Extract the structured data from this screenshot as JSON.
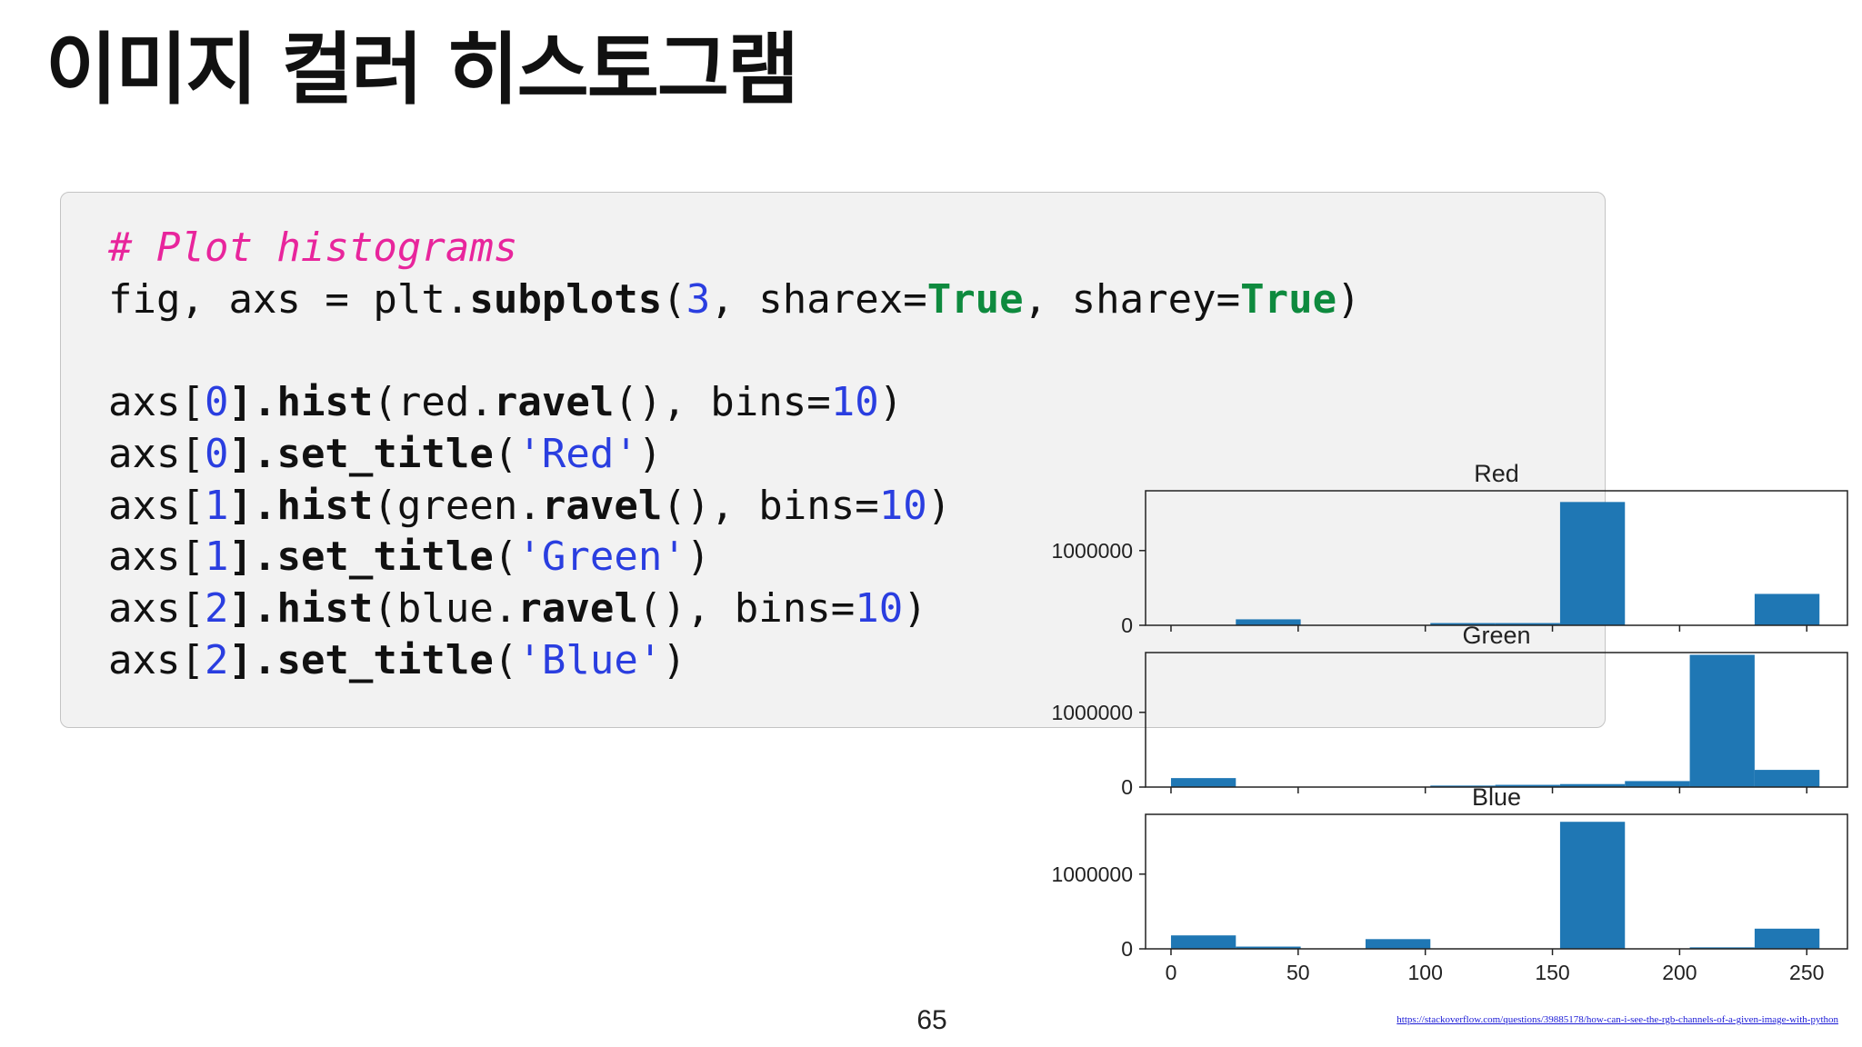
{
  "slide": {
    "title": "이미지 컬러 히스토그램",
    "page_number": "65",
    "source_url": "https://stackoverflow.com/questions/39885178/how-can-i-see-the-rgb-channels-of-a-given-image-with-python"
  },
  "code": {
    "comment": "# Plot histograms",
    "line2": {
      "pre": "fig, axs = plt.",
      "fn": "subplots",
      "open": "(",
      "num": "3",
      "mid1": ", sharex=",
      "kw1": "True",
      "mid2": ", sharey=",
      "kw2": "True",
      "close": ")"
    },
    "lines": [
      {
        "pre": "axs[",
        "idx": "0",
        "dot": "].",
        "fn": "hist",
        "open": "(",
        "var": "red.",
        "fn2": "ravel",
        "call": "()",
        "mid": ", bins=",
        "num": "10",
        "close": ")"
      },
      {
        "pre": "axs[",
        "idx": "0",
        "dot": "].",
        "fn": "set_title",
        "open": "(",
        "str": "'Red'",
        "close": ")"
      },
      {
        "pre": "axs[",
        "idx": "1",
        "dot": "].",
        "fn": "hist",
        "open": "(",
        "var": "green.",
        "fn2": "ravel",
        "call": "()",
        "mid": ", bins=",
        "num": "10",
        "close": ")"
      },
      {
        "pre": "axs[",
        "idx": "1",
        "dot": "].",
        "fn": "set_title",
        "open": "(",
        "str": "'Green'",
        "close": ")"
      },
      {
        "pre": "axs[",
        "idx": "2",
        "dot": "].",
        "fn": "hist",
        "open": "(",
        "var": "blue.",
        "fn2": "ravel",
        "call": "()",
        "mid": ", bins=",
        "num": "10",
        "close": ")"
      },
      {
        "pre": "axs[",
        "idx": "2",
        "dot": "].",
        "fn": "set_title",
        "open": "(",
        "str": "'Blue'",
        "close": ")"
      }
    ]
  },
  "colors": {
    "bar": "#1f77b4",
    "comment": "#e8259c",
    "keyword": "#0e8a3e",
    "number": "#2a3ee0",
    "code_background": "#f2f2f2"
  },
  "chart_data": {
    "type": "bar",
    "shared_x": true,
    "shared_y": true,
    "xlim": [
      -10,
      266
    ],
    "ylim": [
      0,
      1800000
    ],
    "x_ticks": [
      0,
      50,
      100,
      150,
      200,
      250
    ],
    "y_ticks": [
      0,
      1000000
    ],
    "bin_edges": [
      0,
      25.5,
      51,
      76.5,
      102,
      127.5,
      153,
      178.5,
      204,
      229.5,
      255
    ],
    "series": [
      {
        "name": "Red",
        "values": [
          0,
          80000,
          0,
          0,
          30000,
          30000,
          1650000,
          0,
          0,
          420000
        ]
      },
      {
        "name": "Green",
        "values": [
          120000,
          0,
          0,
          0,
          20000,
          30000,
          40000,
          80000,
          1770000,
          230000
        ]
      },
      {
        "name": "Blue",
        "values": [
          180000,
          30000,
          0,
          130000,
          0,
          0,
          1700000,
          0,
          20000,
          270000
        ]
      }
    ]
  }
}
